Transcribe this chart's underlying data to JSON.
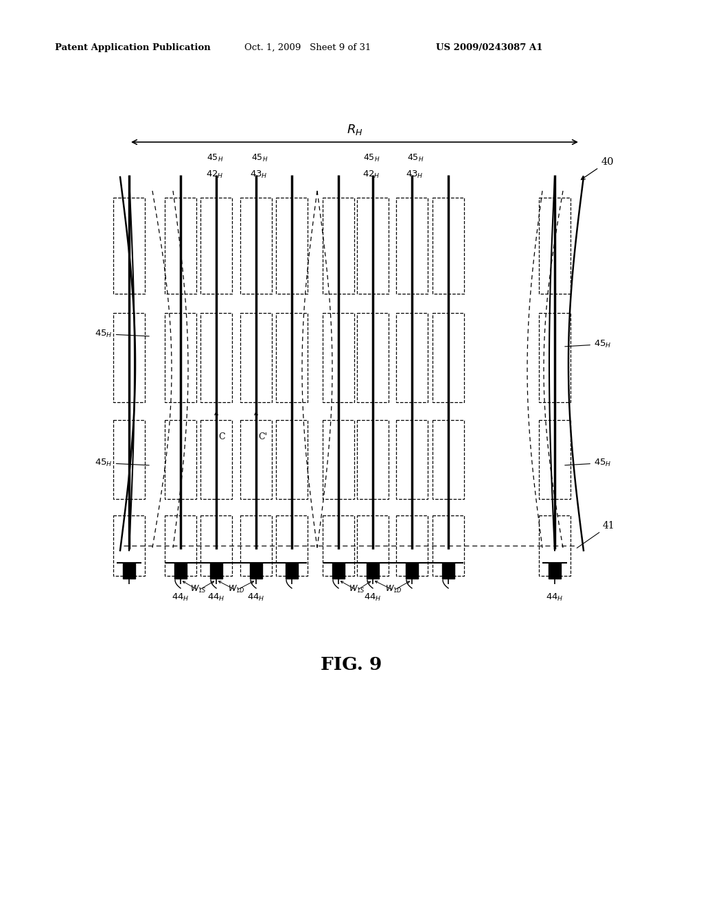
{
  "bg_color": "#ffffff",
  "header_left": "Patent Application Publication",
  "header_mid": "Oct. 1, 2009   Sheet 9 of 31",
  "header_right": "US 2009/0243087 A1",
  "fig_label": "FIG. 9"
}
